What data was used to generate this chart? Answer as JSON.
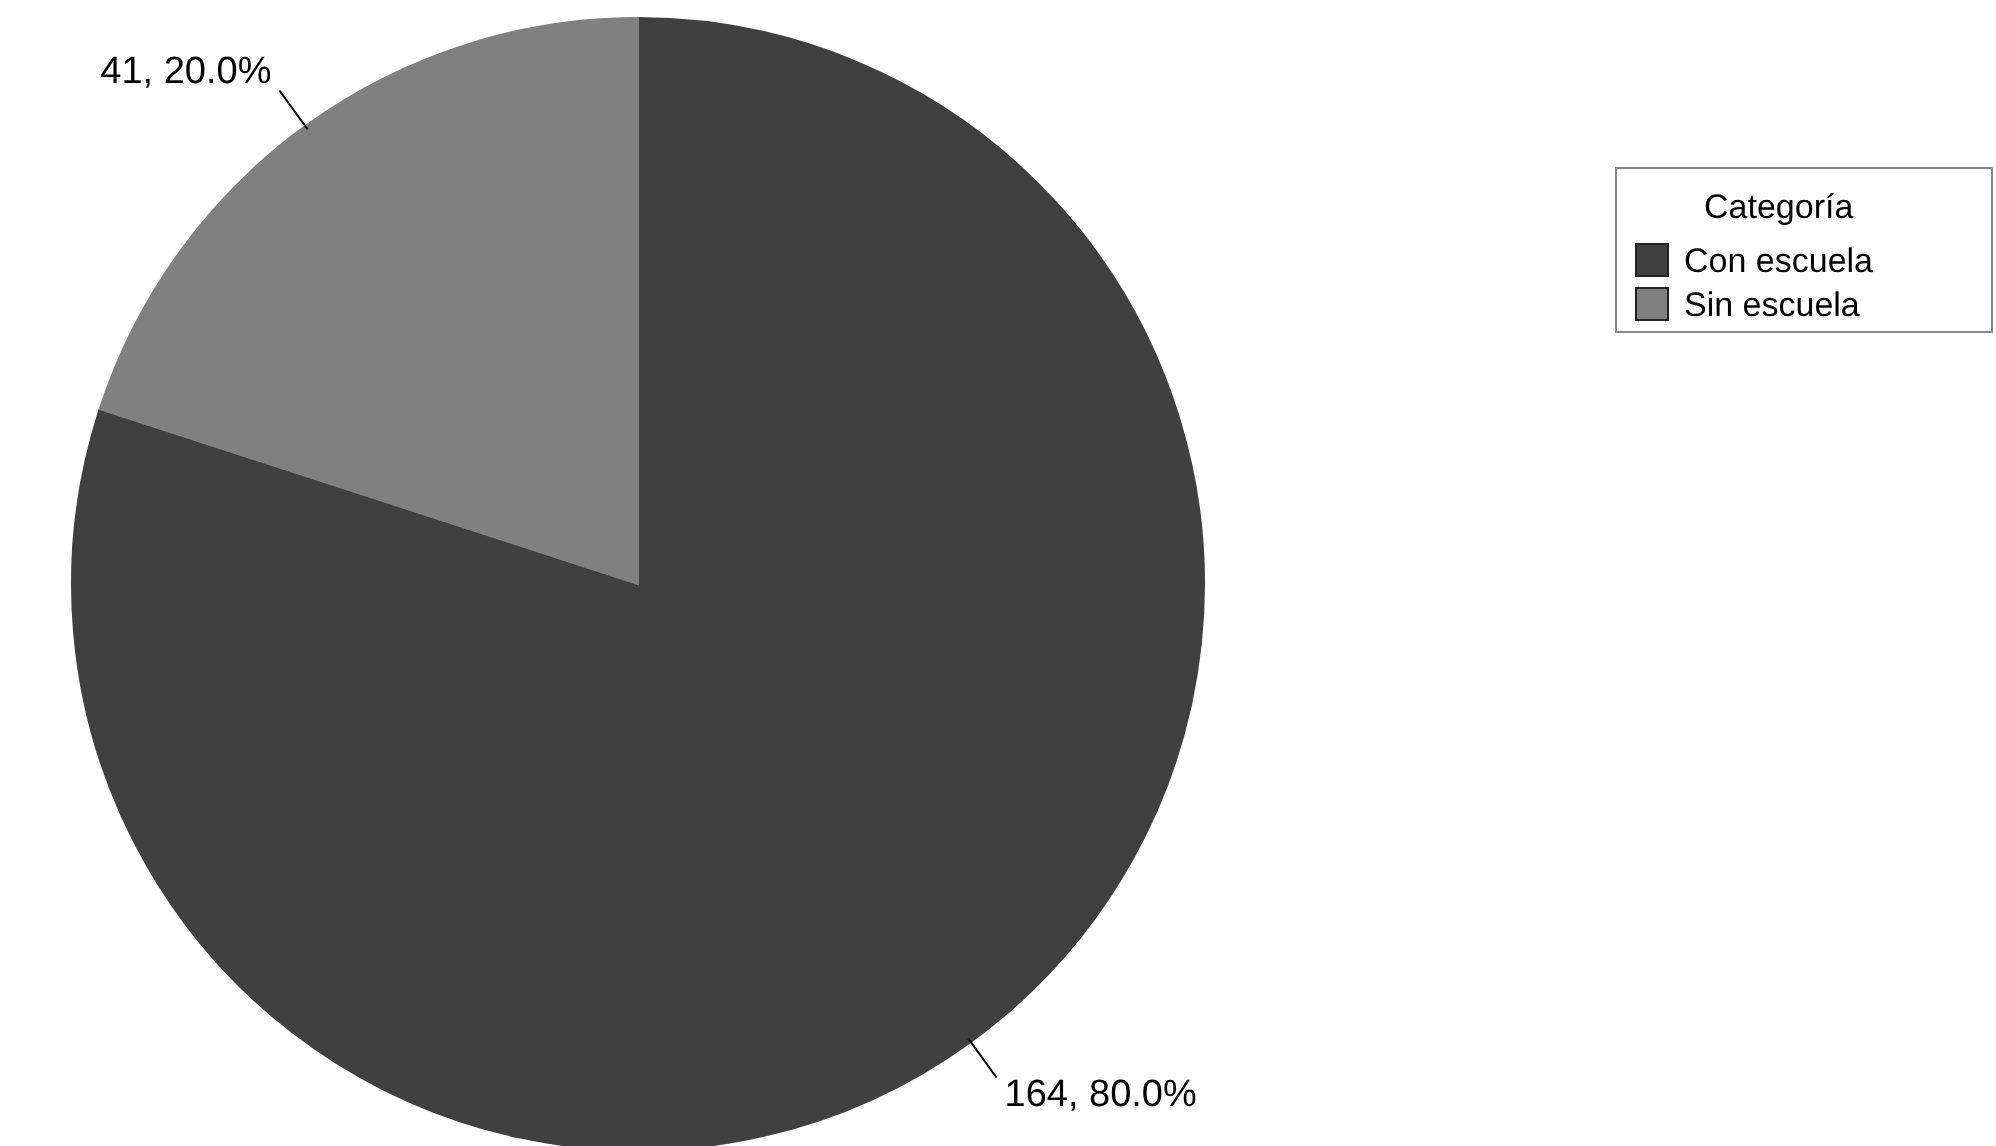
{
  "chart_data": {
    "type": "pie",
    "legend_title": "Categoría",
    "categories": [
      "Con escuela",
      "Sin escuela"
    ],
    "values": [
      164,
      41
    ],
    "colors": [
      "#404040",
      "#808080"
    ],
    "value_labels": [
      "164, 80.0%",
      "41, 20.0%"
    ],
    "legend": "right"
  }
}
